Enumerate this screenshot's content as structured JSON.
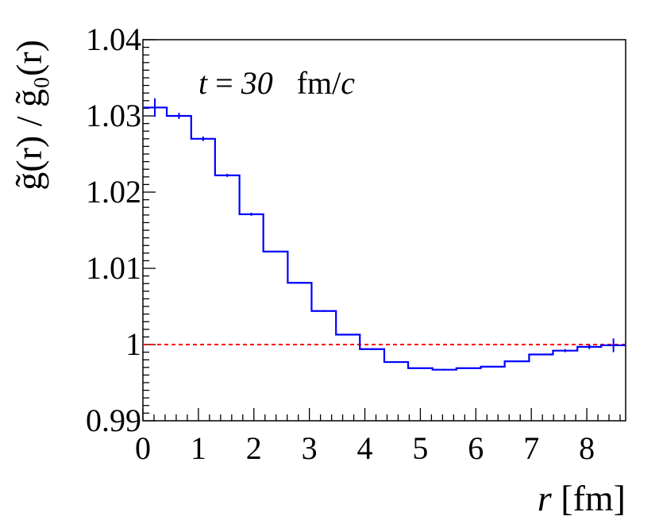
{
  "chart_data": {
    "type": "line",
    "step": true,
    "annotation": {
      "t_var": "t",
      "eq": " = ",
      "t_value": "30",
      "unit_a": "fm/",
      "unit_b": "c"
    },
    "xlabel": {
      "var": "r",
      "unit": " [fm]"
    },
    "ylabel": "g̃(r) / g̃₀(r)",
    "xlim": [
      0,
      8.7
    ],
    "ylim": [
      0.99,
      1.04
    ],
    "x_ticks": [
      "0",
      "1",
      "2",
      "3",
      "4",
      "5",
      "6",
      "7",
      "8"
    ],
    "y_ticks": [
      "0.99",
      "1",
      "1.01",
      "1.02",
      "1.03",
      "1.04"
    ],
    "reference_line": {
      "y": 1.0,
      "color": "#ff0000",
      "style": "dashed"
    },
    "series_color": "#0000ff",
    "series": [
      {
        "bins": [
          {
            "x0": 0.0,
            "x1": 0.43,
            "y": 1.0311,
            "err": 0.0012
          },
          {
            "x0": 0.43,
            "x1": 0.87,
            "y": 1.03,
            "err": 0.0004
          },
          {
            "x0": 0.87,
            "x1": 1.3,
            "y": 1.027,
            "err": 0.0003
          },
          {
            "x0": 1.3,
            "x1": 1.74,
            "y": 1.0222,
            "err": 0.0002
          },
          {
            "x0": 1.74,
            "x1": 2.17,
            "y": 1.0171,
            "err": 0.0002
          },
          {
            "x0": 2.17,
            "x1": 2.61,
            "y": 1.0122,
            "err": 0.0001
          },
          {
            "x0": 2.61,
            "x1": 3.04,
            "y": 1.0081,
            "err": 0.0001
          },
          {
            "x0": 3.04,
            "x1": 3.48,
            "y": 1.0044,
            "err": 0.0001
          },
          {
            "x0": 3.48,
            "x1": 3.91,
            "y": 1.0013,
            "err": 0.0001
          },
          {
            "x0": 3.91,
            "x1": 4.35,
            "y": 0.9994,
            "err": 0.0001
          },
          {
            "x0": 4.35,
            "x1": 4.78,
            "y": 0.9977,
            "err": 0.0001
          },
          {
            "x0": 4.78,
            "x1": 5.22,
            "y": 0.9969,
            "err": 0.0001
          },
          {
            "x0": 5.22,
            "x1": 5.65,
            "y": 0.9967,
            "err": 0.0001
          },
          {
            "x0": 5.65,
            "x1": 6.09,
            "y": 0.9969,
            "err": 0.0001
          },
          {
            "x0": 6.09,
            "x1": 6.52,
            "y": 0.9971,
            "err": 0.0001
          },
          {
            "x0": 6.52,
            "x1": 6.96,
            "y": 0.9978,
            "err": 0.0001
          },
          {
            "x0": 6.96,
            "x1": 7.39,
            "y": 0.9987,
            "err": 0.0001
          },
          {
            "x0": 7.39,
            "x1": 7.83,
            "y": 0.9992,
            "err": 0.0002
          },
          {
            "x0": 7.83,
            "x1": 8.26,
            "y": 0.9997,
            "err": 0.0003
          },
          {
            "x0": 8.26,
            "x1": 8.7,
            "y": 0.9999,
            "err": 0.0009
          }
        ]
      }
    ]
  }
}
